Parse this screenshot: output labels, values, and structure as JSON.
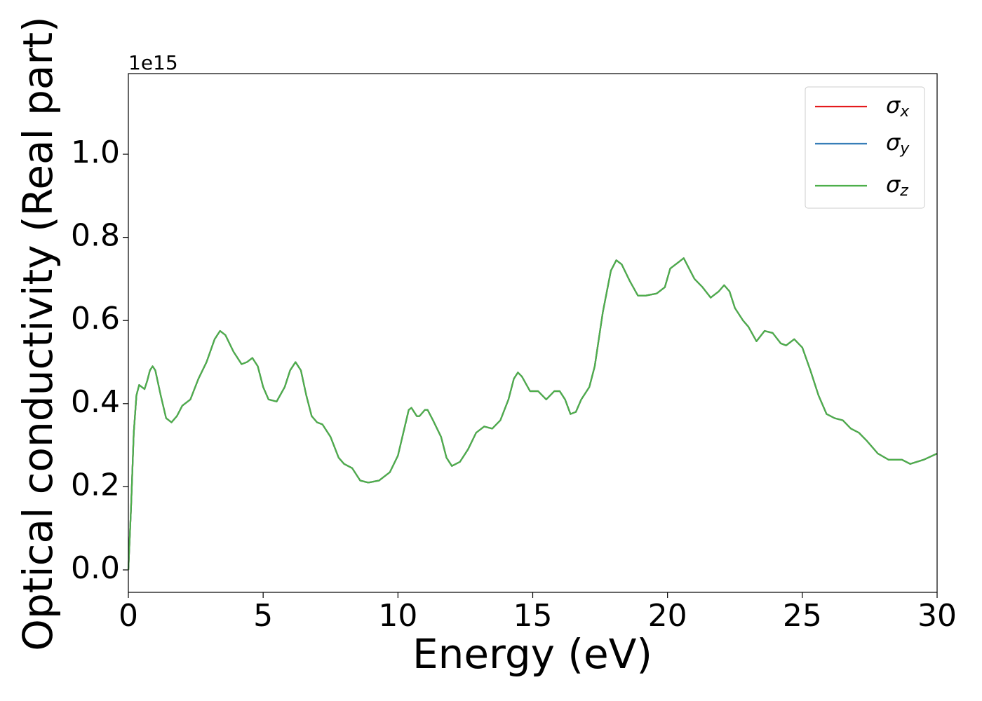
{
  "chart_data": {
    "type": "line",
    "xlabel": "Energy (eV)",
    "ylabel": "Optical conductivity (Real part)",
    "y_axis_offset": "1e15",
    "xlim": [
      0,
      30
    ],
    "xticks": [
      0,
      5,
      10,
      15,
      20,
      25,
      30
    ],
    "ylim": [
      -0.054,
      1.194
    ],
    "yticks": [
      {
        "value": 0,
        "label": "0.0"
      },
      0.2,
      0.4,
      0.6,
      0.8,
      {
        "value": 1,
        "label": "1.0"
      }
    ],
    "legend": "upper right",
    "x": [
      0,
      0.1,
      0.2,
      0.3,
      0.4,
      0.5,
      0.6,
      0.7,
      0.8,
      0.9,
      1.0,
      1.2,
      1.4,
      1.6,
      1.8,
      2.0,
      2.3,
      2.6,
      2.9,
      3.2,
      3.4,
      3.6,
      3.9,
      4.2,
      4.4,
      4.6,
      4.8,
      5.0,
      5.2,
      5.5,
      5.8,
      6.0,
      6.2,
      6.4,
      6.6,
      6.8,
      7.0,
      7.2,
      7.5,
      7.8,
      8.0,
      8.3,
      8.6,
      8.9,
      9.3,
      9.7,
      10.0,
      10.2,
      10.4,
      10.5,
      10.7,
      10.8,
      11.0,
      11.1,
      11.3,
      11.6,
      11.8,
      12.0,
      12.3,
      12.6,
      12.9,
      13.2,
      13.5,
      13.8,
      14.1,
      14.3,
      14.45,
      14.6,
      14.9,
      15.2,
      15.5,
      15.8,
      16.0,
      16.2,
      16.4,
      16.6,
      16.8,
      17.1,
      17.3,
      17.6,
      17.9,
      18.1,
      18.3,
      18.6,
      18.9,
      19.2,
      19.6,
      19.9,
      20.1,
      20.4,
      20.6,
      20.8,
      21.0,
      21.3,
      21.6,
      21.9,
      22.1,
      22.3,
      22.5,
      22.8,
      23.0,
      23.3,
      23.6,
      23.9,
      24.2,
      24.4,
      24.7,
      25.0,
      25.3,
      25.6,
      25.9,
      26.2,
      26.5,
      26.8,
      27.1,
      27.4,
      27.8,
      28.2,
      28.7,
      29.0,
      29.5,
      30.0
    ],
    "series": [
      {
        "name": "σx",
        "color": "#e41a1c",
        "values": [
          0,
          0.15,
          0.33,
          0.42,
          0.445,
          0.44,
          0.435,
          0.455,
          0.48,
          0.49,
          0.48,
          0.42,
          0.365,
          0.355,
          0.37,
          0.395,
          0.41,
          0.46,
          0.5,
          0.555,
          0.575,
          0.565,
          0.525,
          0.495,
          0.5,
          0.51,
          0.49,
          0.44,
          0.41,
          0.405,
          0.44,
          0.48,
          0.5,
          0.48,
          0.42,
          0.37,
          0.355,
          0.35,
          0.32,
          0.27,
          0.255,
          0.245,
          0.215,
          0.21,
          0.215,
          0.235,
          0.275,
          0.33,
          0.385,
          0.39,
          0.37,
          0.37,
          0.385,
          0.385,
          0.36,
          0.32,
          0.27,
          0.25,
          0.26,
          0.29,
          0.33,
          0.345,
          0.34,
          0.36,
          0.41,
          0.46,
          0.475,
          0.465,
          0.43,
          0.43,
          0.41,
          0.43,
          0.43,
          0.41,
          0.375,
          0.38,
          0.41,
          0.44,
          0.49,
          0.62,
          0.72,
          0.745,
          0.735,
          0.695,
          0.66,
          0.66,
          0.665,
          0.68,
          0.725,
          0.74,
          0.75,
          0.725,
          0.7,
          0.68,
          0.655,
          0.67,
          0.685,
          0.67,
          0.63,
          0.6,
          0.585,
          0.55,
          0.575,
          0.57,
          0.545,
          0.54,
          0.555,
          0.535,
          0.48,
          0.42,
          0.375,
          0.365,
          0.36,
          0.34,
          0.33,
          0.31,
          0.28,
          0.265,
          0.265,
          0.255,
          0.265,
          0.28
        ]
      },
      {
        "name": "σy",
        "color": "#377eb8",
        "values": [
          0,
          0.15,
          0.33,
          0.42,
          0.445,
          0.44,
          0.435,
          0.455,
          0.48,
          0.49,
          0.48,
          0.42,
          0.365,
          0.355,
          0.37,
          0.395,
          0.41,
          0.46,
          0.5,
          0.555,
          0.575,
          0.565,
          0.525,
          0.495,
          0.5,
          0.51,
          0.49,
          0.44,
          0.41,
          0.405,
          0.44,
          0.48,
          0.5,
          0.48,
          0.42,
          0.37,
          0.355,
          0.35,
          0.32,
          0.27,
          0.255,
          0.245,
          0.215,
          0.21,
          0.215,
          0.235,
          0.275,
          0.33,
          0.385,
          0.39,
          0.37,
          0.37,
          0.385,
          0.385,
          0.36,
          0.32,
          0.27,
          0.25,
          0.26,
          0.29,
          0.33,
          0.345,
          0.34,
          0.36,
          0.41,
          0.46,
          0.475,
          0.465,
          0.43,
          0.43,
          0.41,
          0.43,
          0.43,
          0.41,
          0.375,
          0.38,
          0.41,
          0.44,
          0.49,
          0.62,
          0.72,
          0.745,
          0.735,
          0.695,
          0.66,
          0.66,
          0.665,
          0.68,
          0.725,
          0.74,
          0.75,
          0.725,
          0.7,
          0.68,
          0.655,
          0.67,
          0.685,
          0.67,
          0.63,
          0.6,
          0.585,
          0.55,
          0.575,
          0.57,
          0.545,
          0.54,
          0.555,
          0.535,
          0.48,
          0.42,
          0.375,
          0.365,
          0.36,
          0.34,
          0.33,
          0.31,
          0.28,
          0.265,
          0.265,
          0.255,
          0.265,
          0.28
        ]
      },
      {
        "name": "σz",
        "color": "#4daf4a",
        "values": [
          0,
          0.15,
          0.33,
          0.42,
          0.445,
          0.44,
          0.435,
          0.455,
          0.48,
          0.49,
          0.48,
          0.42,
          0.365,
          0.355,
          0.37,
          0.395,
          0.41,
          0.46,
          0.5,
          0.555,
          0.575,
          0.565,
          0.525,
          0.495,
          0.5,
          0.51,
          0.49,
          0.44,
          0.41,
          0.405,
          0.44,
          0.48,
          0.5,
          0.48,
          0.42,
          0.37,
          0.355,
          0.35,
          0.32,
          0.27,
          0.255,
          0.245,
          0.215,
          0.21,
          0.215,
          0.235,
          0.275,
          0.33,
          0.385,
          0.39,
          0.37,
          0.37,
          0.385,
          0.385,
          0.36,
          0.32,
          0.27,
          0.25,
          0.26,
          0.29,
          0.33,
          0.345,
          0.34,
          0.36,
          0.41,
          0.46,
          0.475,
          0.465,
          0.43,
          0.43,
          0.41,
          0.43,
          0.43,
          0.41,
          0.375,
          0.38,
          0.41,
          0.44,
          0.49,
          0.62,
          0.72,
          0.745,
          0.735,
          0.695,
          0.66,
          0.66,
          0.665,
          0.68,
          0.725,
          0.74,
          0.75,
          0.725,
          0.7,
          0.68,
          0.655,
          0.67,
          0.685,
          0.67,
          0.63,
          0.6,
          0.585,
          0.55,
          0.575,
          0.57,
          0.545,
          0.54,
          0.555,
          0.535,
          0.48,
          0.42,
          0.375,
          0.365,
          0.36,
          0.34,
          0.33,
          0.31,
          0.28,
          0.265,
          0.265,
          0.255,
          0.265,
          0.28
        ]
      }
    ]
  }
}
